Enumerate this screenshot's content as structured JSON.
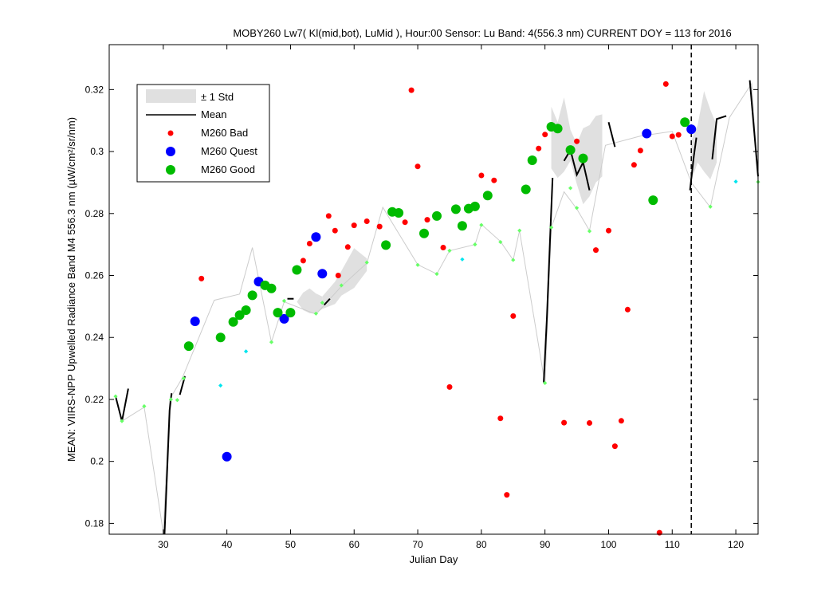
{
  "chart_data": {
    "type": "scatter",
    "title": "MOBY260   Lw7( Kl(mid,bot), LuMid ),   Hour:00 Sensor: Lu Band: 4(556.3 nm)   CURRENT DOY = 113 for 2016",
    "xlabel": "Julian Day",
    "ylabel": "MEAN: VIIRS-NPP Upwelled Radiance Band M4 556.3 nm (µW/cm²/sr/nm)",
    "xlim": [
      21.5,
      123.5
    ],
    "ylim": [
      0.1765,
      0.3345
    ],
    "xticks": [
      30,
      40,
      50,
      60,
      70,
      80,
      90,
      100,
      110,
      120
    ],
    "yticks": [
      0.18,
      0.2,
      0.22,
      0.24,
      0.26,
      0.28,
      0.3,
      0.32
    ],
    "xtick_labels": [
      "30",
      "40",
      "50",
      "60",
      "70",
      "80",
      "90",
      "100",
      "110",
      "120"
    ],
    "ytick_labels": [
      "0.18",
      "0.2",
      "0.22",
      "0.24",
      "0.26",
      "0.28",
      "0.3",
      "0.32"
    ],
    "current_doy": 113,
    "legend": {
      "placement": "top-left",
      "entries": [
        {
          "key": "std",
          "label": "± 1 Std"
        },
        {
          "key": "mean",
          "label": "Mean"
        },
        {
          "key": "bad",
          "label": "M260 Bad"
        },
        {
          "key": "quest",
          "label": "M260 Quest"
        },
        {
          "key": "good",
          "label": "M260 Good"
        }
      ]
    },
    "colors": {
      "bad": "#ff0000",
      "quest": "#0000ff",
      "good": "#00bb00",
      "green_small": "#66ff66",
      "cyan_small": "#00e5ee",
      "mean": "#000000",
      "std": "#e0e0e0",
      "thin_line": "#cccccc"
    },
    "thin_line": [
      [
        22.5,
        0.221
      ],
      [
        23.5,
        0.213
      ],
      [
        27,
        0.2175
      ],
      [
        30,
        0.177
      ],
      [
        31,
        0.22
      ],
      [
        33,
        0.227
      ],
      [
        38,
        0.252
      ],
      [
        42,
        0.254
      ],
      [
        44,
        0.269
      ],
      [
        47,
        0.2385
      ],
      [
        49,
        0.2515
      ],
      [
        54,
        0.2475
      ],
      [
        58,
        0.2565
      ],
      [
        62,
        0.264
      ],
      [
        64.5,
        0.282
      ],
      [
        70,
        0.2635
      ],
      [
        73,
        0.2605
      ],
      [
        75,
        0.268
      ],
      [
        79,
        0.27
      ],
      [
        80,
        0.2765
      ],
      [
        83,
        0.271
      ],
      [
        85,
        0.265
      ],
      [
        86,
        0.2745
      ],
      [
        90,
        0.225
      ],
      [
        91,
        0.2755
      ],
      [
        93,
        0.287
      ],
      [
        95,
        0.2815
      ],
      [
        97,
        0.2745
      ],
      [
        99.5,
        0.302
      ],
      [
        105,
        0.305
      ],
      [
        110,
        0.3065
      ],
      [
        113,
        0.29
      ],
      [
        116,
        0.282
      ],
      [
        119,
        0.311
      ],
      [
        122.5,
        0.322
      ],
      [
        123.5,
        0.29
      ]
    ],
    "std_band": [
      {
        "x": [
          51,
          52,
          53,
          54,
          55
        ],
        "lower": [
          0.2515,
          0.2488,
          0.2478,
          0.2478,
          0.2492
        ],
        "upper": [
          0.2515,
          0.2545,
          0.2558,
          0.2542,
          0.2532
        ]
      },
      {
        "x": [
          55,
          57,
          58,
          60,
          62
        ],
        "lower": [
          0.2492,
          0.2508,
          0.2535,
          0.256,
          0.2615
        ],
        "upper": [
          0.2532,
          0.258,
          0.2615,
          0.2688,
          0.2655
        ]
      },
      {
        "x": [
          91,
          92,
          93,
          94,
          95,
          96,
          97,
          98,
          99
        ],
        "lower": [
          0.2945,
          0.2915,
          0.2935,
          0.297,
          0.2895,
          0.283,
          0.2855,
          0.29,
          0.292
        ],
        "upper": [
          0.3145,
          0.3095,
          0.3175,
          0.307,
          0.3025,
          0.3075,
          0.3085,
          0.3115,
          0.312
        ]
      },
      {
        "x": [
          113,
          114,
          115,
          116,
          117
        ],
        "lower": [
          0.2905,
          0.2965,
          0.2935,
          0.291,
          0.2965
        ],
        "upper": [
          0.3035,
          0.3085,
          0.3195,
          0.3135,
          0.3085
        ]
      }
    ],
    "mean_segments": [
      [
        [
          22.5,
          0.221
        ],
        [
          23.5,
          0.213
        ],
        [
          24.5,
          0.2235
        ]
      ],
      [
        [
          30.2,
          0.1765
        ],
        [
          31,
          0.2165
        ],
        [
          31.3,
          0.222
        ]
      ],
      [
        [
          32.6,
          0.2215
        ],
        [
          33.4,
          0.2275
        ]
      ],
      [
        [
          49.5,
          0.2525
        ],
        [
          50.5,
          0.2525
        ]
      ],
      [
        [
          55.3,
          0.2505
        ],
        [
          56.2,
          0.2525
        ]
      ],
      [
        [
          89.8,
          0.2255
        ],
        [
          90.3,
          0.2465
        ],
        [
          90.8,
          0.2715
        ],
        [
          91.2,
          0.2915
        ]
      ],
      [
        [
          93,
          0.297
        ],
        [
          94,
          0.3005
        ],
        [
          95,
          0.2925
        ],
        [
          96,
          0.2965
        ],
        [
          97,
          0.2875
        ]
      ],
      [
        [
          100,
          0.3095
        ],
        [
          101,
          0.3015
        ]
      ],
      [
        [
          112.8,
          0.2875
        ],
        [
          113.4,
          0.2985
        ],
        [
          113.8,
          0.3045
        ]
      ],
      [
        [
          116.3,
          0.2975
        ],
        [
          117,
          0.3105
        ],
        [
          118.5,
          0.3115
        ]
      ],
      [
        [
          122.2,
          0.323
        ],
        [
          123.5,
          0.292
        ]
      ]
    ],
    "green_small": [
      [
        22.5,
        0.221
      ],
      [
        23.5,
        0.213
      ],
      [
        27,
        0.2178
      ],
      [
        31.2,
        0.22
      ],
      [
        32.2,
        0.2198
      ],
      [
        33.2,
        0.2268
      ],
      [
        47,
        0.2385
      ],
      [
        49,
        0.2518
      ],
      [
        54,
        0.2477
      ],
      [
        55,
        0.2512
      ],
      [
        58,
        0.2568
      ],
      [
        62,
        0.2642
      ],
      [
        70,
        0.2634
      ],
      [
        73,
        0.2605
      ],
      [
        75,
        0.268
      ],
      [
        79,
        0.27
      ],
      [
        80,
        0.2763
      ],
      [
        83,
        0.2708
      ],
      [
        85,
        0.265
      ],
      [
        86,
        0.2745
      ],
      [
        90,
        0.2253
      ],
      [
        91,
        0.2755
      ],
      [
        94,
        0.2882
      ],
      [
        95,
        0.2818
      ],
      [
        97,
        0.2743
      ],
      [
        116,
        0.2822
      ],
      [
        123.5,
        0.2902
      ]
    ],
    "cyan_small": [
      [
        39,
        0.2245
      ],
      [
        43,
        0.2355
      ],
      [
        77,
        0.2652
      ],
      [
        120,
        0.2903
      ]
    ],
    "bad": [
      [
        36,
        0.259
      ],
      [
        51,
        0.262
      ],
      [
        52,
        0.2648
      ],
      [
        53,
        0.2703
      ],
      [
        56,
        0.2792
      ],
      [
        57,
        0.2745
      ],
      [
        57.5,
        0.26
      ],
      [
        59,
        0.2692
      ],
      [
        60,
        0.2762
      ],
      [
        62,
        0.2775
      ],
      [
        64,
        0.2758
      ],
      [
        68,
        0.2772
      ],
      [
        69,
        0.3198
      ],
      [
        70,
        0.2952
      ],
      [
        71.5,
        0.278
      ],
      [
        74,
        0.269
      ],
      [
        75,
        0.224
      ],
      [
        80,
        0.2923
      ],
      [
        82,
        0.2907
      ],
      [
        83,
        0.2139
      ],
      [
        84,
        0.1892
      ],
      [
        85,
        0.2469
      ],
      [
        89,
        0.301
      ],
      [
        90,
        0.3055
      ],
      [
        93,
        0.2125
      ],
      [
        95,
        0.3033
      ],
      [
        97,
        0.2124
      ],
      [
        98,
        0.2682
      ],
      [
        100,
        0.2745
      ],
      [
        101,
        0.2049
      ],
      [
        102,
        0.2131
      ],
      [
        103,
        0.249
      ],
      [
        104,
        0.2957
      ],
      [
        105,
        0.3003
      ],
      [
        108,
        0.177
      ],
      [
        109,
        0.3218
      ],
      [
        110,
        0.3049
      ],
      [
        111,
        0.3054
      ]
    ],
    "quest": [
      [
        35,
        0.2452
      ],
      [
        40,
        0.2015
      ],
      [
        45,
        0.258
      ],
      [
        49,
        0.246
      ],
      [
        54,
        0.2724
      ],
      [
        55,
        0.2606
      ],
      [
        106,
        0.3058
      ],
      [
        113,
        0.3072
      ]
    ],
    "good": [
      [
        34,
        0.2372
      ],
      [
        39,
        0.24
      ],
      [
        41,
        0.245
      ],
      [
        42,
        0.2472
      ],
      [
        43,
        0.2488
      ],
      [
        44,
        0.2536
      ],
      [
        46,
        0.2568
      ],
      [
        47,
        0.2558
      ],
      [
        48,
        0.248
      ],
      [
        50,
        0.248
      ],
      [
        51,
        0.2618
      ],
      [
        65,
        0.2698
      ],
      [
        66,
        0.2805
      ],
      [
        67,
        0.2802
      ],
      [
        71,
        0.2736
      ],
      [
        73,
        0.2792
      ],
      [
        76,
        0.2814
      ],
      [
        77,
        0.276
      ],
      [
        78,
        0.2816
      ],
      [
        79,
        0.2823
      ],
      [
        81,
        0.2858
      ],
      [
        87,
        0.2878
      ],
      [
        88,
        0.2972
      ],
      [
        91,
        0.308
      ],
      [
        92,
        0.3074
      ],
      [
        94,
        0.3005
      ],
      [
        96,
        0.2978
      ],
      [
        107,
        0.2843
      ],
      [
        112,
        0.3095
      ]
    ]
  }
}
